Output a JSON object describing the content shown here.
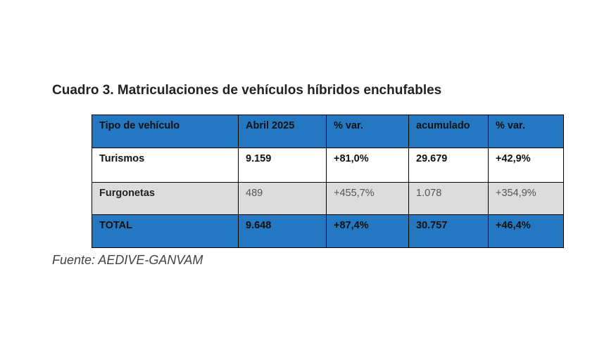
{
  "title": "Cuadro 3. Matriculaciones de vehículos híbridos enchufables",
  "table": {
    "headers": [
      "Tipo de vehículo",
      "Abril 2025",
      "% var.",
      "acumulado",
      "% var."
    ],
    "rows": [
      [
        "Turismos",
        "9.159",
        "+81,0%",
        "29.679",
        "+42,9%"
      ],
      [
        "Furgonetas",
        "489",
        "+455,7%",
        "1.078",
        "+354,9%"
      ]
    ],
    "total": [
      "TOTAL",
      "9.648",
      "+87,4%",
      "30.757",
      "+46,4%"
    ]
  },
  "source": "Fuente: AEDIVE-GANVAM",
  "colors": {
    "header_bg": "#2378c1",
    "alt_row_bg": "#dcdcdc"
  }
}
